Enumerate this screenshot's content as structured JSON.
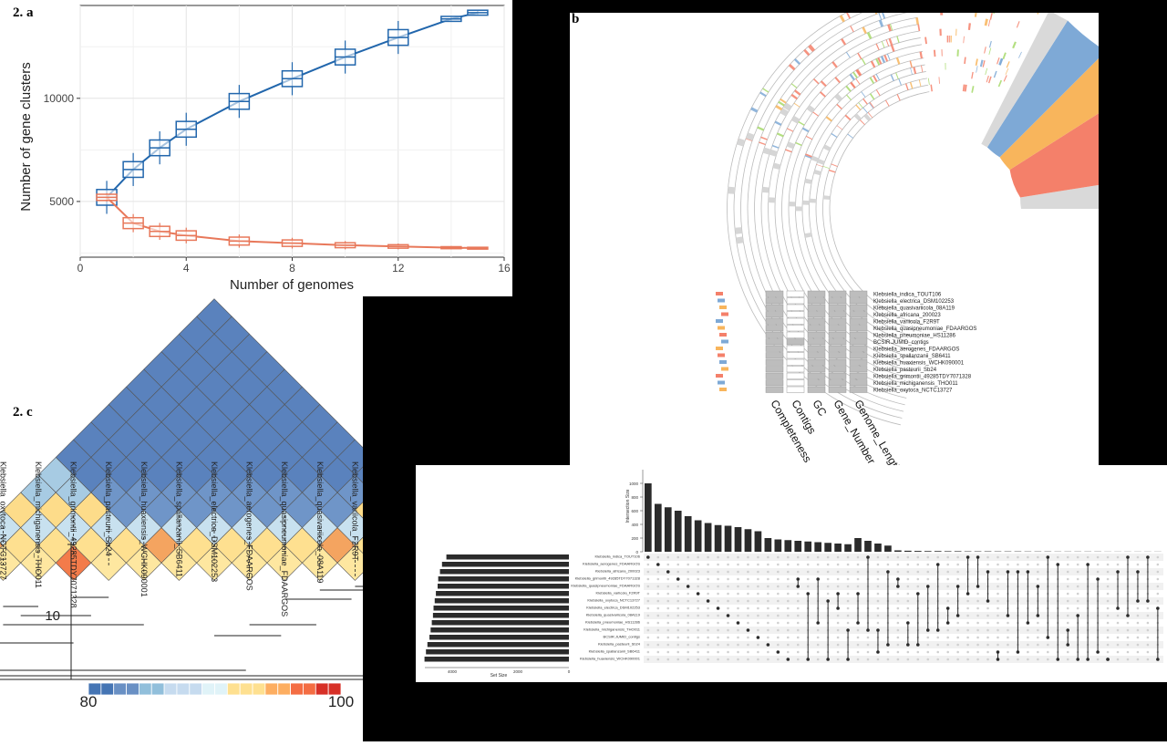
{
  "labels": {
    "a": "2. a",
    "b": "b",
    "c": "2. c"
  },
  "colors": {
    "core": "#2166ac",
    "pan": "#e8785a",
    "grey": "#d9d9d9",
    "blue": "#7ea9d6",
    "orange": "#f8b55c",
    "red": "#f4806a"
  },
  "chart_data": [
    {
      "type": "line",
      "title": "",
      "xlabel": "Number of genomes",
      "ylabel": "Number of gene clusters",
      "xlim": [
        0,
        16
      ],
      "ylim": [
        2300,
        14500
      ],
      "xticks": [
        0,
        4,
        8,
        12,
        16
      ],
      "yticks": [
        5000,
        10000
      ],
      "grid": true,
      "series": [
        {
          "x": [
            1,
            2,
            3,
            4,
            6,
            8,
            10,
            12,
            14,
            15
          ],
          "values": [
            5200,
            6550,
            7600,
            8500,
            9850,
            10950,
            12000,
            12950,
            13850,
            14150
          ]
        },
        {
          "x": [
            1,
            2,
            3,
            4,
            6,
            8,
            10,
            12,
            14,
            15
          ],
          "values": [
            5200,
            3950,
            3550,
            3350,
            3080,
            2980,
            2880,
            2820,
            2760,
            2740
          ]
        }
      ]
    },
    {
      "type": "heatmap",
      "title": "",
      "colorbar": {
        "min": "80",
        "max": "100"
      },
      "strains": [
        "Klebsiella_indica_TOUT106",
        "Klebsiella_oxytoca_NCTC13727",
        "Klebsiella_michiganensis_THO011",
        "Klebsiella_grimontii_49285TDY7071328",
        "Klebsiella_pasteurii_Sb24",
        "Klebsiella_huaxiensis_WCHK090001",
        "Klebsiella_spallanzanii_SB6411",
        "Klebsiella_electrica_DSM102253",
        "Klebsiella_aerogenes_FDAARGOS",
        "Klebsiella_quasipneumoniae_FDAARGOS",
        "Klebsiella_quasivariicola_08A119",
        "Klebsiella_variicola_F2R9T",
        "Klebsiella_africana_200023",
        "BCSIR.JUMID_contigs",
        "Klebsiella_pneumoniae_HS11286"
      ],
      "dendrogram_axis": [
        "0",
        "10"
      ]
    },
    {
      "type": "other",
      "title": "",
      "legend_strains": [
        "Klebsiella_indica_TOUT106",
        "Klebsiella_electrica_DSM102253",
        "Klebsiella_quasivariicola_08A119",
        "Klebsiella_africana_200023",
        "Klebsiella_variicola_F2R9T",
        "Klebsiella_quasipneumoniae_FDAARGOS",
        "Klebsiella_pneumoniae_HS11286",
        "BCSIR.JUMID_contigs",
        "Klebsiella_aerogenes_FDAARGOS",
        "Klebsiella_spallanzanii_SB6411",
        "Klebsiella_huaxiensis_WCHK090001",
        "Klebsiella_pasteurii_Sb24",
        "Klebsiella_grimontii_49285TDY7071328",
        "Klebsiella_michiganensis_THO011",
        "Klebsiella_oxytoca_NCTC13727"
      ],
      "metric_labels": [
        "Completeness",
        "Contigs",
        "GC",
        "Gene_Number",
        "Genome_Length"
      ]
    },
    {
      "type": "bar",
      "title": "",
      "ylabel": "Intersection Size",
      "xlabel": "Set Size",
      "yticks": [
        "1000",
        "800",
        "600",
        "400",
        "200",
        "0"
      ],
      "xticks": [
        "4000",
        "2000",
        "0"
      ],
      "intersection_values": [
        1000,
        700,
        650,
        600,
        520,
        460,
        420,
        390,
        380,
        360,
        330,
        300,
        200,
        180,
        170,
        160,
        150,
        140,
        130,
        120,
        110,
        200,
        160,
        120,
        90,
        20,
        15,
        12,
        10,
        10,
        8,
        8,
        6,
        6,
        6,
        5,
        5,
        5,
        4,
        4,
        4,
        3,
        3,
        3,
        3,
        3,
        2,
        2,
        2,
        2,
        2,
        2
      ],
      "sets": [
        "Klebsiella_indica_TOUT106",
        "Klebsiella_aerogenes_FDAARGOS",
        "Klebsiella_africana_200023",
        "Klebsiella_grimontii_49285TDY7071328",
        "Klebsiella_quasipneumoniae_FDAARGOS",
        "Klebsiella_variicola_F2R9T",
        "Klebsiella_oxytoca_NCTC13727",
        "Klebsiella_electrica_DSM102253",
        "Klebsiella_quasivariicola_08A119",
        "Klebsiella_pneumoniae_HS11286",
        "Klebsiella_michiganensis_THO011",
        "BCSIR.JUMID_contigs",
        "Klebsiella_pasteurii_Sb24",
        "Klebsiella_spallanzanii_SB6411",
        "Klebsiella_huaxiensis_WCHK090001"
      ],
      "set_sizes": [
        4200,
        4350,
        4420,
        4480,
        4500,
        4560,
        4600,
        4640,
        4660,
        4700,
        4740,
        4780,
        4850,
        4900,
        4950
      ]
    }
  ]
}
